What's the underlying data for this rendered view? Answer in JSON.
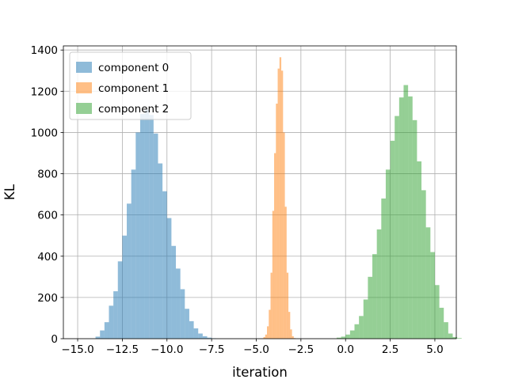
{
  "chart_data": {
    "type": "histogram",
    "title": "",
    "xlabel": "iteration",
    "ylabel": "KL",
    "xlim": [
      -15.8,
      6.2
    ],
    "ylim": [
      0,
      1420
    ],
    "xticks": [
      -15.0,
      -12.5,
      -10.0,
      -7.5,
      -5.0,
      -2.5,
      0.0,
      2.5,
      5.0
    ],
    "xtick_labels": [
      "−15.0",
      "−12.5",
      "−10.0",
      "−7.5",
      "−5.0",
      "−2.5",
      "0.0",
      "2.5",
      "5.0"
    ],
    "yticks": [
      0,
      200,
      400,
      600,
      800,
      1000,
      1200,
      1400
    ],
    "ytick_labels": [
      "0",
      "200",
      "400",
      "600",
      "800",
      "1000",
      "1200",
      "1400"
    ],
    "grid": true,
    "legend_position": "upper-left",
    "bar_opacity": 0.5,
    "series": [
      {
        "name": "component 0",
        "color": "#1f77b4",
        "bin_start": -14.0,
        "bin_width": 0.25,
        "counts": [
          10,
          40,
          80,
          160,
          230,
          375,
          500,
          655,
          820,
          1000,
          1090,
          1110,
          1085,
          995,
          850,
          715,
          585,
          450,
          340,
          240,
          145,
          85,
          50,
          25,
          12,
          5,
          2
        ]
      },
      {
        "name": "component 1",
        "color": "#ff7f0e",
        "bin_start": -4.7,
        "bin_width": 0.1,
        "counts": [
          2,
          8,
          20,
          60,
          140,
          320,
          620,
          900,
          1140,
          1310,
          1365,
          1300,
          1000,
          640,
          320,
          130,
          45,
          12,
          3
        ]
      },
      {
        "name": "component 2",
        "color": "#2ca02c",
        "bin_start": -0.5,
        "bin_width": 0.25,
        "counts": [
          5,
          10,
          20,
          40,
          70,
          110,
          190,
          300,
          410,
          530,
          680,
          820,
          960,
          1080,
          1170,
          1230,
          1175,
          1060,
          860,
          720,
          540,
          420,
          260,
          150,
          80,
          25,
          8,
          3
        ]
      }
    ]
  }
}
